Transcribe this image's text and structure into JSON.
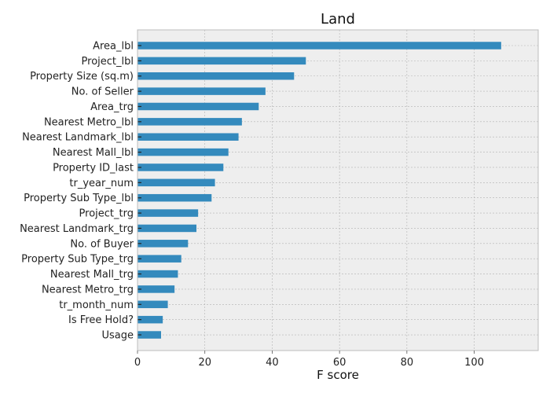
{
  "chart_data": {
    "type": "bar",
    "orientation": "horizontal",
    "title": "Land",
    "xlabel": "F score",
    "ylabel": "",
    "xlim": [
      0,
      119
    ],
    "xticks": [
      0,
      20,
      40,
      60,
      80,
      100
    ],
    "grid": true,
    "categories": [
      "Area_lbl",
      "Project_lbl",
      "Property Size (sq.m)",
      "No. of Seller",
      "Area_trg",
      "Nearest Metro_lbl",
      "Nearest Landmark_lbl",
      "Nearest Mall_lbl",
      "Property ID_last",
      "tr_year_num",
      "Property Sub Type_lbl",
      "Project_trg",
      "Nearest Landmark_trg",
      "No. of Buyer",
      "Property Sub Type_trg",
      "Nearest Mall_trg",
      "Nearest Metro_trg",
      "tr_month_num",
      "Is Free Hold?",
      "Usage"
    ],
    "values": [
      108,
      50,
      46.5,
      38,
      36,
      31,
      30,
      27,
      25.5,
      23,
      22,
      18,
      17.5,
      15,
      13,
      12,
      11,
      9,
      7.5,
      7
    ],
    "colors": {
      "bar": "#348abd",
      "plot_background": "#eeeeee",
      "grid": "#b2b2b2",
      "frame": "#bcbcbc"
    }
  }
}
